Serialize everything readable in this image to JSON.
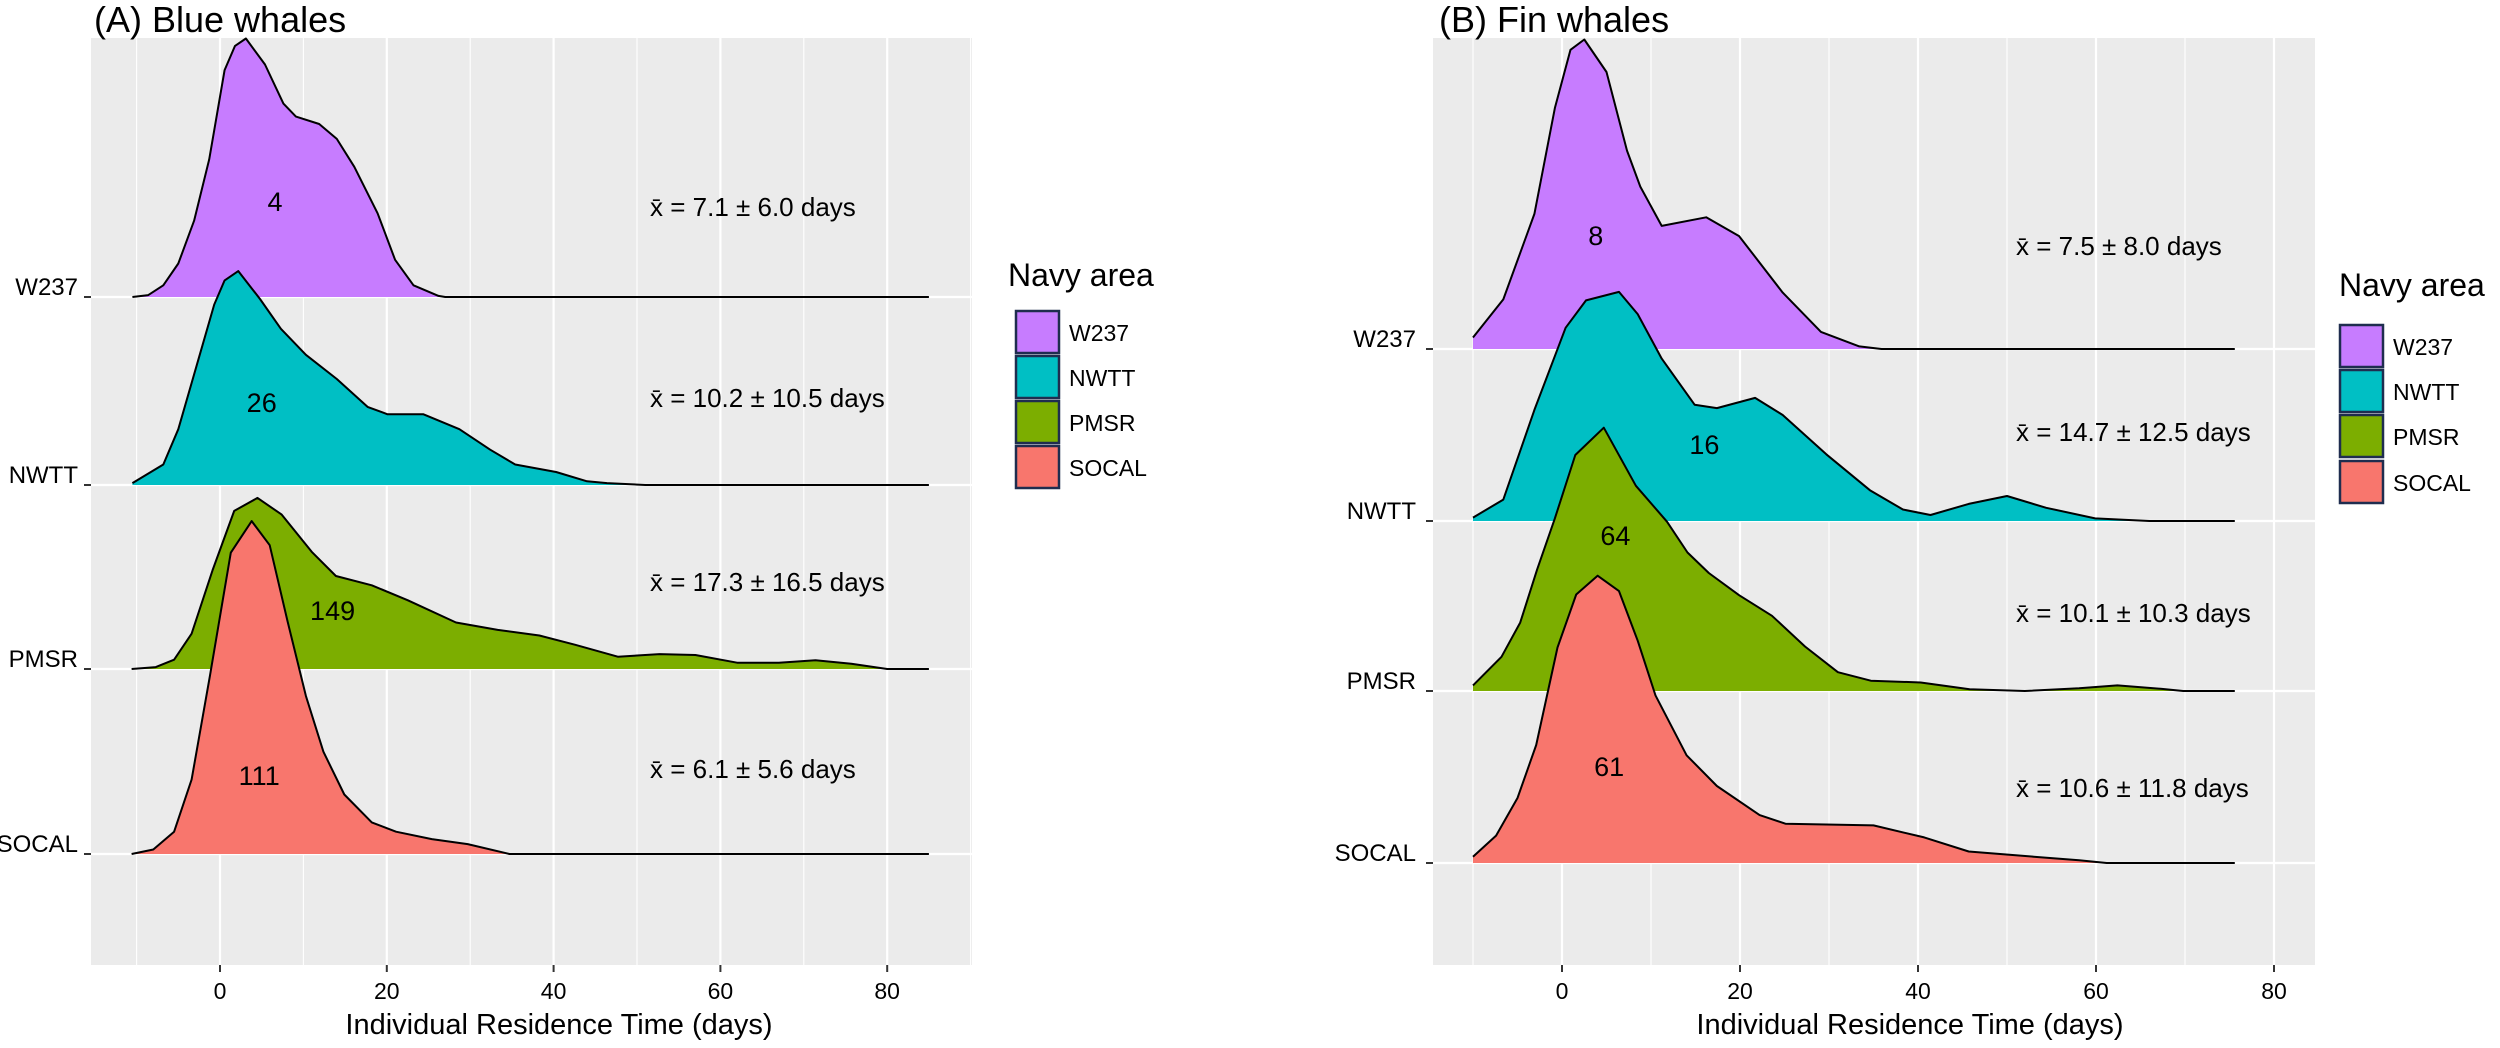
{
  "chart_data": [
    {
      "type": "ridgeline",
      "title": "(A) Blue whales",
      "xlabel": "Individual Residence Time (days)",
      "ylabel": "",
      "xlim": [
        -15,
        90
      ],
      "x_ticks": [
        0,
        20,
        40,
        60,
        80
      ],
      "x_tick_labels": [
        "0",
        "20",
        "40",
        "60",
        "80"
      ],
      "grid": true,
      "legend": {
        "title": "Navy area",
        "position": "right",
        "entries": [
          "W237",
          "NWTT",
          "PMSR",
          "SOCAL"
        ]
      },
      "series": [
        {
          "name": "W237",
          "color": "#C77CFF",
          "count_label": "4",
          "count_x": 6.6,
          "mean_label": "x̄ = 7.1 ± 6.0 days",
          "x_end": 85,
          "density": [
            [
              -10.5,
              0
            ],
            [
              -8.6,
              0.01
            ],
            [
              -6.8,
              0.063
            ],
            [
              -5,
              0.18
            ],
            [
              -3.1,
              0.41
            ],
            [
              -1.3,
              0.74
            ],
            [
              0.55,
              1.22
            ],
            [
              1.8,
              1.35
            ],
            [
              3.1,
              1.39
            ],
            [
              5.4,
              1.25
            ],
            [
              7.6,
              1.04
            ],
            [
              9.1,
              0.97
            ],
            [
              11.9,
              0.93
            ],
            [
              14,
              0.85
            ],
            [
              16.1,
              0.7
            ],
            [
              18.9,
              0.45
            ],
            [
              21,
              0.2
            ],
            [
              23.2,
              0.063
            ],
            [
              26.2,
              0.006
            ],
            [
              27,
              0
            ]
          ]
        },
        {
          "name": "NWTT",
          "color": "#00BFC4",
          "count_label": "26",
          "count_x": 5,
          "mean_label": "x̄ = 10.2 ± 10.5 days",
          "x_end": 85,
          "density": [
            [
              -10.5,
              0.01
            ],
            [
              -6.8,
              0.11
            ],
            [
              -5,
              0.3
            ],
            [
              -2.5,
              0.69
            ],
            [
              -0.7,
              0.97
            ],
            [
              0.55,
              1.1
            ],
            [
              2.2,
              1.15
            ],
            [
              4.8,
              1.0
            ],
            [
              7.3,
              0.84
            ],
            [
              10.3,
              0.7
            ],
            [
              14,
              0.57
            ],
            [
              17.7,
              0.42
            ],
            [
              20.1,
              0.38
            ],
            [
              24.4,
              0.38
            ],
            [
              28.7,
              0.3
            ],
            [
              32.4,
              0.19
            ],
            [
              35.4,
              0.11
            ],
            [
              40.3,
              0.07
            ],
            [
              44,
              0.02
            ],
            [
              46.4,
              0.01
            ],
            [
              51,
              0
            ]
          ]
        },
        {
          "name": "PMSR",
          "color": "#7CAE00",
          "count_label": "149",
          "count_x": 13.5,
          "mean_label": "x̄ = 17.3 ± 16.5 days",
          "x_end": 85,
          "density": [
            [
              -10.6,
              0
            ],
            [
              -7.7,
              0.01
            ],
            [
              -5.5,
              0.05
            ],
            [
              -3.4,
              0.19
            ],
            [
              -0.9,
              0.53
            ],
            [
              1.7,
              0.85
            ],
            [
              4.5,
              0.92
            ],
            [
              7.4,
              0.83
            ],
            [
              11,
              0.63
            ],
            [
              13.9,
              0.5
            ],
            [
              18.2,
              0.45
            ],
            [
              22.5,
              0.37
            ],
            [
              28.3,
              0.25
            ],
            [
              33.3,
              0.21
            ],
            [
              38.3,
              0.18
            ],
            [
              42.6,
              0.13
            ],
            [
              47.7,
              0.066
            ],
            [
              52.7,
              0.08
            ],
            [
              57,
              0.075
            ],
            [
              62,
              0.034
            ],
            [
              67,
              0.034
            ],
            [
              71.4,
              0.047
            ],
            [
              75.7,
              0.028
            ],
            [
              80,
              0
            ]
          ]
        },
        {
          "name": "SOCAL",
          "color": "#F8766D",
          "count_label": "111",
          "count_x": 4.7,
          "mean_label": "x̄ = 6.1 ± 5.6 days",
          "x_end": 85,
          "density": [
            [
              -10.6,
              0
            ],
            [
              -8,
              0.024
            ],
            [
              -5.5,
              0.12
            ],
            [
              -3.4,
              0.4
            ],
            [
              -1.2,
              0.96
            ],
            [
              1.3,
              1.62
            ],
            [
              3.8,
              1.79
            ],
            [
              5.96,
              1.66
            ],
            [
              8.1,
              1.25
            ],
            [
              10.3,
              0.85
            ],
            [
              12.4,
              0.55
            ],
            [
              14.9,
              0.32
            ],
            [
              18.2,
              0.17
            ],
            [
              21.1,
              0.12
            ],
            [
              25.4,
              0.08
            ],
            [
              29.7,
              0.053
            ],
            [
              34.7,
              0
            ]
          ]
        }
      ]
    },
    {
      "type": "ridgeline",
      "title": "(B) Fin whales",
      "xlabel": "Individual Residence Time (days)",
      "ylabel": "",
      "xlim": [
        -14,
        85
      ],
      "x_ticks": [
        0,
        20,
        40,
        60,
        80
      ],
      "x_tick_labels": [
        "0",
        "20",
        "40",
        "60",
        "80"
      ],
      "grid": true,
      "legend": {
        "title": "Navy area",
        "position": "right",
        "entries": [
          "W237",
          "NWTT",
          "PMSR",
          "SOCAL"
        ]
      },
      "series": [
        {
          "name": "W237",
          "color": "#C77CFF",
          "count_label": "8",
          "count_x": 3.8,
          "mean_label": "x̄ = 7.5 ± 8.0 days",
          "x_end": 75.6,
          "density": [
            [
              -10,
              0.067
            ],
            [
              -6.6,
              0.29
            ],
            [
              -3.1,
              0.79
            ],
            [
              -0.8,
              1.41
            ],
            [
              0.95,
              1.75
            ],
            [
              2.5,
              1.81
            ],
            [
              5,
              1.62
            ],
            [
              7.3,
              1.16
            ],
            [
              8.8,
              0.95
            ],
            [
              11.2,
              0.72
            ],
            [
              16.2,
              0.77
            ],
            [
              19.9,
              0.66
            ],
            [
              24.8,
              0.33
            ],
            [
              29.1,
              0.1
            ],
            [
              33.4,
              0.015
            ],
            [
              35.9,
              0
            ]
          ]
        },
        {
          "name": "NWTT",
          "color": "#00BFC4",
          "count_label": "16",
          "count_x": 16,
          "mean_label": "x̄ = 14.7 ± 12.5 days",
          "x_end": 75.6,
          "density": [
            [
              -10,
              0.02
            ],
            [
              -6.6,
              0.125
            ],
            [
              -3.1,
              0.65
            ],
            [
              0.4,
              1.13
            ],
            [
              2.7,
              1.29
            ],
            [
              6.4,
              1.34
            ],
            [
              8.5,
              1.21
            ],
            [
              11.2,
              0.95
            ],
            [
              14.9,
              0.68
            ],
            [
              17.4,
              0.66
            ],
            [
              21.7,
              0.72
            ],
            [
              24.8,
              0.62
            ],
            [
              29.7,
              0.39
            ],
            [
              34.6,
              0.18
            ],
            [
              38.3,
              0.067
            ],
            [
              41.4,
              0.035
            ],
            [
              45.7,
              0.1
            ],
            [
              50,
              0.146
            ],
            [
              54.4,
              0.077
            ],
            [
              59.9,
              0.015
            ],
            [
              66,
              0
            ]
          ]
        },
        {
          "name": "PMSR",
          "color": "#7CAE00",
          "count_label": "64",
          "count_x": 6,
          "mean_label": "x̄ = 10.1 ± 10.3 days",
          "x_end": 75.6,
          "density": [
            [
              -10,
              0.033
            ],
            [
              -6.8,
              0.2
            ],
            [
              -4.7,
              0.4
            ],
            [
              -2.8,
              0.71
            ],
            [
              -0.8,
              1.01
            ],
            [
              1.5,
              1.38
            ],
            [
              4.7,
              1.54
            ],
            [
              8.3,
              1.2
            ],
            [
              11.8,
              0.99
            ],
            [
              14.1,
              0.81
            ],
            [
              16.5,
              0.69
            ],
            [
              19.9,
              0.56
            ],
            [
              23.6,
              0.44
            ],
            [
              27.3,
              0.26
            ],
            [
              31,
              0.11
            ],
            [
              34.7,
              0.06
            ],
            [
              40.3,
              0.05
            ],
            [
              45.8,
              0.01
            ],
            [
              52,
              0
            ],
            [
              58.1,
              0.016
            ],
            [
              62.4,
              0.033
            ],
            [
              67.4,
              0.012
            ],
            [
              69.8,
              0
            ]
          ]
        },
        {
          "name": "SOCAL",
          "color": "#F8766D",
          "count_label": "61",
          "count_x": 5.3,
          "mean_label": "x̄ = 10.6 ± 11.8 days",
          "x_end": 75.6,
          "density": [
            [
              -10,
              0.037
            ],
            [
              -7.4,
              0.16
            ],
            [
              -5,
              0.38
            ],
            [
              -2.9,
              0.69
            ],
            [
              -0.5,
              1.26
            ],
            [
              1.6,
              1.57
            ],
            [
              4,
              1.68
            ],
            [
              6.4,
              1.59
            ],
            [
              8.5,
              1.3
            ],
            [
              10.5,
              0.98
            ],
            [
              14,
              0.63
            ],
            [
              17.4,
              0.45
            ],
            [
              22.2,
              0.28
            ],
            [
              25.1,
              0.23
            ],
            [
              35,
              0.22
            ],
            [
              40.7,
              0.15
            ],
            [
              45.7,
              0.067
            ],
            [
              53,
              0.037
            ],
            [
              58.1,
              0.016
            ],
            [
              61.2,
              0
            ]
          ]
        }
      ]
    }
  ]
}
